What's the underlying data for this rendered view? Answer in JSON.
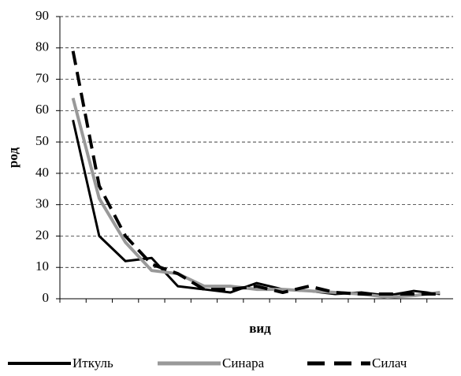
{
  "chart_data": {
    "type": "line",
    "xlabel": "вид",
    "ylabel": "род",
    "categories": [
      null,
      null,
      null,
      null,
      null,
      null,
      null,
      null,
      null,
      null,
      null,
      null,
      null,
      null,
      null
    ],
    "series": [
      {
        "name": "Иткуль",
        "color": "#000000",
        "width": 3,
        "dash": false,
        "values": [
          57,
          20,
          12,
          13,
          4,
          3,
          2,
          5,
          3,
          2.5,
          1.5,
          2,
          1,
          2.5,
          1.5
        ]
      },
      {
        "name": "Синара",
        "color": "#999999",
        "width": 4,
        "dash": false,
        "values": [
          64,
          32,
          18,
          9,
          8,
          4,
          4,
          3,
          3,
          2.5,
          2,
          1.5,
          0.5,
          1,
          2
        ]
      },
      {
        "name": "Силач",
        "color": "#000000",
        "width": 4,
        "dash": true,
        "values": [
          79,
          36,
          20,
          11,
          8,
          3,
          3,
          4,
          2,
          4,
          2,
          1.5,
          1.5,
          1.5,
          1.5
        ]
      }
    ],
    "ylim": [
      0,
      90
    ],
    "yticks": [
      0,
      10,
      20,
      30,
      40,
      50,
      60,
      70,
      80,
      90
    ],
    "grid": true,
    "legend": "bottom"
  }
}
